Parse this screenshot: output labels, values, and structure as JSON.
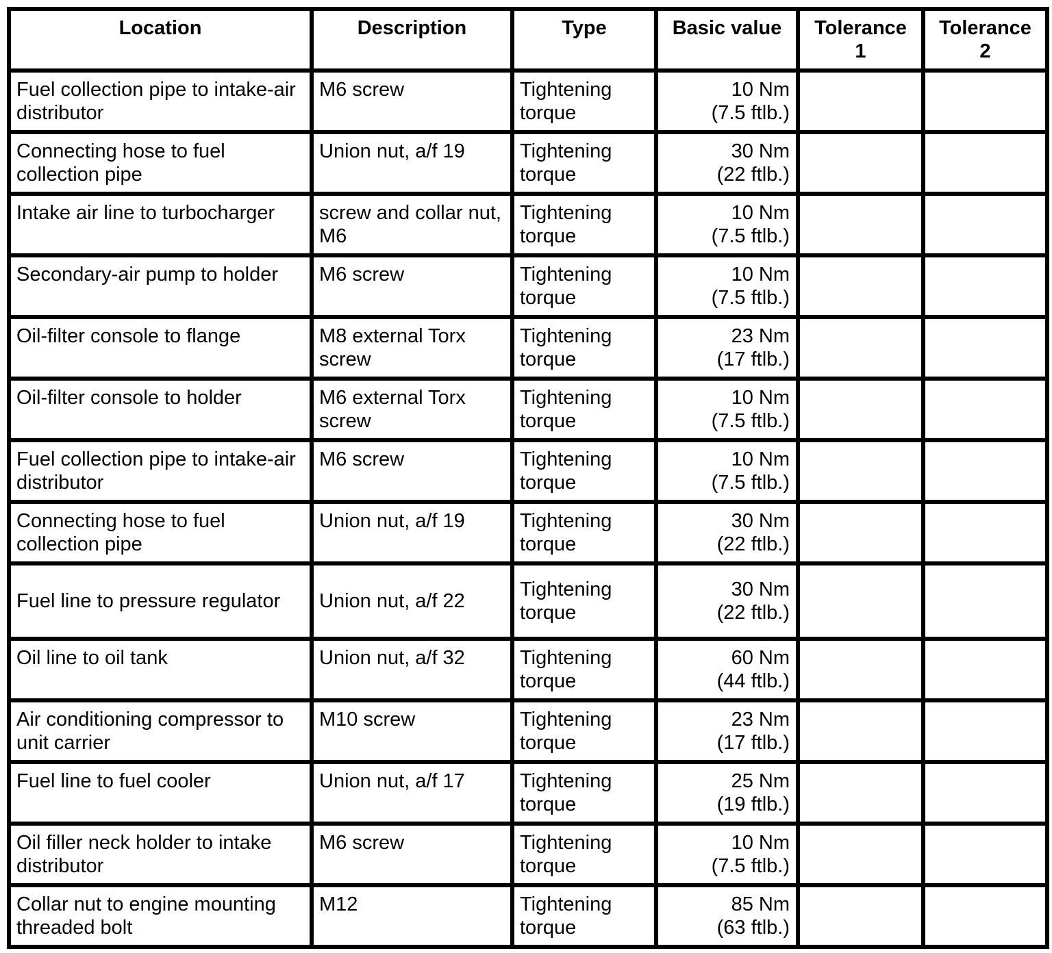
{
  "table": {
    "columns": {
      "location": "Location",
      "description": "Description",
      "type": "Type",
      "basic_value": "Basic value",
      "tolerance1": "Tolerance\n1",
      "tolerance2": "Tolerance\n2"
    },
    "rows": [
      {
        "location": "Fuel collection pipe to intake-air distributor",
        "description": "M6 screw",
        "type": "Tightening torque",
        "basic_value": "10 Nm\n(7.5 ftlb.)",
        "tolerance1": "",
        "tolerance2": ""
      },
      {
        "location": "Connecting hose to fuel collection pipe",
        "description": "Union nut, a/f 19",
        "type": "Tightening torque",
        "basic_value": "30 Nm\n(22 ftlb.)",
        "tolerance1": "",
        "tolerance2": ""
      },
      {
        "location": "Intake air line to turbocharger",
        "description": "screw and collar nut, M6",
        "type": "Tightening torque",
        "basic_value": "10 Nm\n(7.5 ftlb.)",
        "tolerance1": "",
        "tolerance2": ""
      },
      {
        "location": "Secondary-air pump to holder",
        "description": "M6 screw",
        "type": "Tightening torque",
        "basic_value": "10 Nm\n(7.5 ftlb.)",
        "tolerance1": "",
        "tolerance2": ""
      },
      {
        "location": "Oil-filter console to flange",
        "description": "M8 external Torx screw",
        "type": "Tightening torque",
        "basic_value": "23 Nm\n(17 ftlb.)",
        "tolerance1": "",
        "tolerance2": ""
      },
      {
        "location": "Oil-filter console to holder",
        "description": "M6 external Torx screw",
        "type": "Tightening torque",
        "basic_value": "10 Nm\n(7.5 ftlb.)",
        "tolerance1": "",
        "tolerance2": ""
      },
      {
        "location": "Fuel collection pipe to intake-air distributor",
        "description": "M6 screw",
        "type": "Tightening torque",
        "basic_value": "10 Nm\n(7.5 ftlb.)",
        "tolerance1": "",
        "tolerance2": ""
      },
      {
        "location": "Connecting hose to fuel collection pipe",
        "description": "Union nut, a/f 19",
        "type": "Tightening torque",
        "basic_value": "30 Nm\n(22 ftlb.)",
        "tolerance1": "",
        "tolerance2": ""
      },
      {
        "location": "Fuel line to pressure regulator",
        "description": "Union nut, a/f 22",
        "type": "Tightening torque",
        "basic_value": "30 Nm\n(22 ftlb.)",
        "tolerance1": "",
        "tolerance2": ""
      },
      {
        "location": "Oil line to oil tank",
        "description": "Union nut, a/f 32",
        "type": "Tightening torque",
        "basic_value": "60 Nm\n(44 ftlb.)",
        "tolerance1": "",
        "tolerance2": ""
      },
      {
        "location": "Air conditioning compressor to unit carrier",
        "description": "M10 screw",
        "type": "Tightening torque",
        "basic_value": "23 Nm\n(17 ftlb.)",
        "tolerance1": "",
        "tolerance2": ""
      },
      {
        "location": "Fuel line to fuel cooler",
        "description": "Union nut, a/f 17",
        "type": "Tightening torque",
        "basic_value": "25 Nm\n(19 ftlb.)",
        "tolerance1": "",
        "tolerance2": ""
      },
      {
        "location": "Oil filler neck holder to intake distributor",
        "description": "M6 screw",
        "type": "Tightening torque",
        "basic_value": "10 Nm\n(7.5 ftlb.)",
        "tolerance1": "",
        "tolerance2": ""
      },
      {
        "location": "Collar nut to engine mounting threaded bolt",
        "description": "M12",
        "type": "Tightening torque",
        "basic_value": "85 Nm\n(63 ftlb.)",
        "tolerance1": "",
        "tolerance2": ""
      }
    ]
  }
}
